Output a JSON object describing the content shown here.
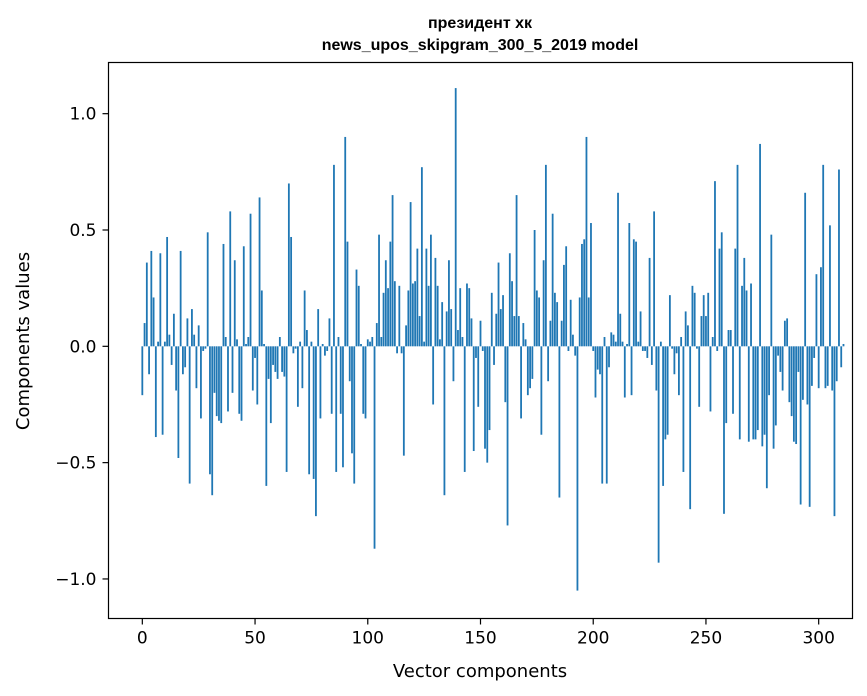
{
  "chart_data": {
    "type": "bar",
    "title": "президент хк",
    "subtitle": "news_upos_skipgram_300_5_2019 model",
    "xlabel": "Vector components",
    "ylabel": "Components values",
    "xlim": [
      -15,
      315
    ],
    "ylim": [
      -1.17,
      1.22
    ],
    "xticks": [
      0,
      50,
      100,
      150,
      200,
      250,
      300
    ],
    "yticks": [
      -1.0,
      -0.5,
      0.0,
      0.5,
      1.0
    ],
    "ytick_labels": [
      "−1.0",
      "−0.5",
      "0.0",
      "0.5",
      "1.0"
    ],
    "grid": false,
    "color": "#1f77b4",
    "values": [
      -0.21,
      0.1,
      0.36,
      -0.12,
      0.41,
      0.21,
      -0.39,
      0.02,
      0.4,
      -0.38,
      0.02,
      0.47,
      0.05,
      -0.08,
      0.14,
      -0.19,
      -0.48,
      0.41,
      -0.12,
      -0.09,
      0.12,
      -0.59,
      0.16,
      0.05,
      -0.18,
      0.09,
      -0.31,
      -0.02,
      -0.01,
      0.49,
      -0.55,
      -0.64,
      -0.2,
      -0.3,
      -0.32,
      -0.33,
      0.44,
      0.04,
      -0.28,
      0.58,
      -0.2,
      0.37,
      0.03,
      -0.29,
      -0.32,
      0.43,
      0.01,
      0.04,
      0.57,
      -0.19,
      -0.05,
      -0.25,
      0.64,
      0.24,
      0.01,
      -0.6,
      -0.14,
      -0.33,
      -0.08,
      -0.11,
      -0.14,
      0.04,
      -0.11,
      -0.13,
      -0.54,
      0.7,
      0.47,
      -0.03,
      -0.01,
      -0.26,
      0.02,
      -0.18,
      0.24,
      0.07,
      -0.55,
      0.02,
      -0.57,
      -0.73,
      0.16,
      -0.31,
      0.01,
      -0.04,
      -0.02,
      0.12,
      -0.29,
      0.78,
      -0.54,
      0.04,
      -0.29,
      -0.52,
      0.9,
      0.45,
      -0.15,
      -0.46,
      -0.59,
      0.33,
      0.26,
      0.01,
      -0.29,
      -0.31,
      0.03,
      0.02,
      0.04,
      -0.87,
      0.1,
      0.48,
      0.04,
      0.23,
      0.37,
      0.25,
      0.45,
      0.65,
      0.28,
      -0.03,
      0.26,
      -0.03,
      -0.47,
      0.09,
      0.24,
      0.62,
      0.27,
      0.28,
      0.42,
      0.13,
      0.77,
      0.02,
      0.42,
      0.26,
      0.48,
      -0.25,
      0.38,
      0.26,
      0.03,
      0.19,
      -0.64,
      0.15,
      0.37,
      0.16,
      -0.15,
      1.11,
      0.07,
      0.25,
      0.04,
      -0.54,
      0.27,
      0.25,
      0.12,
      -0.45,
      -0.05,
      -0.26,
      0.11,
      -0.02,
      -0.44,
      -0.5,
      -0.36,
      0.23,
      -0.08,
      0.14,
      0.36,
      0.16,
      0.22,
      -0.24,
      -0.77,
      0.4,
      0.28,
      0.13,
      0.65,
      0.13,
      -0.31,
      0.1,
      0.03,
      -0.21,
      -0.18,
      -0.14,
      0.5,
      0.24,
      0.21,
      -0.38,
      0.37,
      0.78,
      -0.15,
      0.11,
      0.57,
      0.23,
      0.19,
      -0.65,
      0.11,
      0.35,
      0.43,
      -0.02,
      0.2,
      0.05,
      -0.04,
      -1.05,
      0.21,
      0.44,
      0.46,
      0.9,
      0.21,
      0.53,
      -0.02,
      -0.22,
      -0.1,
      -0.12,
      -0.59,
      0.04,
      -0.59,
      -0.09,
      0.06,
      0.05,
      0.02,
      0.66,
      0.14,
      0.02,
      -0.22,
      0.01,
      0.53,
      -0.21,
      0.46,
      0.45,
      0.02,
      0.15,
      -0.02,
      -0.02,
      -0.05,
      0.38,
      -0.08,
      0.58,
      -0.19,
      -0.93,
      0.02,
      -0.6,
      -0.4,
      -0.38,
      0.22,
      -0.01,
      -0.12,
      -0.03,
      -0.21,
      0.04,
      -0.54,
      0.15,
      0.09,
      -0.7,
      0.26,
      0.23,
      -0.01,
      -0.26,
      0.13,
      0.22,
      0.13,
      0.23,
      -0.28,
      0.04,
      0.71,
      -0.02,
      0.42,
      0.49,
      -0.72,
      -0.33,
      0.07,
      0.07,
      -0.29,
      0.42,
      0.78,
      -0.4,
      0.26,
      0.38,
      0.24,
      -0.41,
      0.27,
      -0.4,
      -0.4,
      -0.36,
      0.87,
      -0.43,
      -0.38,
      -0.61,
      -0.21,
      0.48,
      -0.44,
      -0.34,
      -0.04,
      -0.11,
      -0.19,
      0.11,
      0.12,
      -0.24,
      -0.3,
      -0.41,
      -0.42,
      -0.11,
      -0.68,
      -0.23,
      0.66,
      -0.25,
      -0.69,
      -0.17,
      -0.05,
      0.31,
      -0.18,
      0.34,
      0.78,
      -0.18,
      -0.17,
      0.52,
      -0.19,
      -0.73,
      -0.15,
      0.76,
      -0.09,
      0.01
    ]
  }
}
